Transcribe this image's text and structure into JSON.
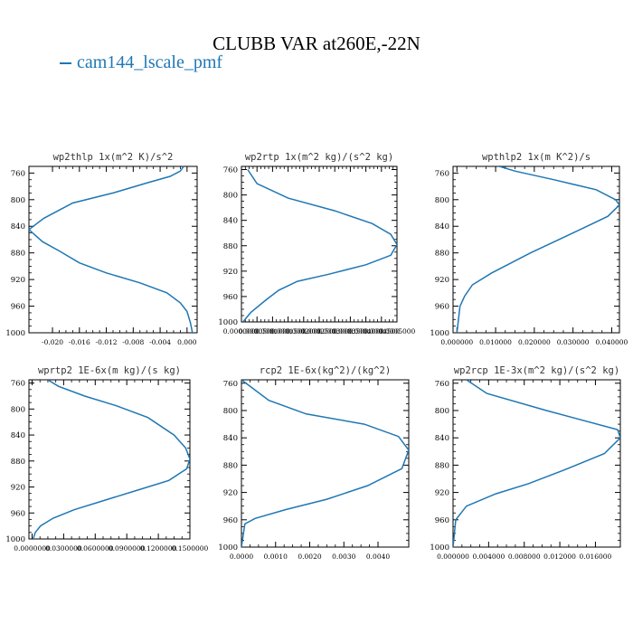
{
  "figure": {
    "title": "CLUBB VAR at260E,-22N",
    "legend_label": "cam144_lscale_pmf",
    "line_color": "#1f77b4"
  },
  "chart_data": [
    {
      "type": "line",
      "title": "wp2thlp  1x(m^2 K)/s^2",
      "xlim": [
        -0.0235,
        0.0015
      ],
      "ylim": [
        1000,
        750
      ],
      "xticks": [
        -0.02,
        -0.016,
        -0.012,
        -0.008,
        -0.004,
        0.0
      ],
      "xtick_labels": [
        "-0.020",
        "-0.016",
        "-0.012",
        "-0.008",
        "-0.004",
        "0.000"
      ],
      "yticks": [
        760,
        800,
        840,
        880,
        920,
        960,
        1000
      ],
      "ytick_labels": [
        "760",
        "800",
        "840",
        "880",
        "920",
        "960",
        "1000"
      ],
      "series": [
        {
          "x": [
            -0.0005,
            -0.001,
            -0.0025,
            -0.006,
            -0.011,
            -0.017,
            -0.0213,
            -0.0235,
            -0.0215,
            -0.019,
            -0.016,
            -0.012,
            -0.007,
            -0.003,
            -0.001,
            0.0,
            0.0005,
            0.0008
          ],
          "y": [
            750,
            757,
            765,
            775,
            790,
            805,
            828,
            845,
            863,
            877,
            895,
            910,
            925,
            940,
            955,
            968,
            985,
            1000
          ]
        }
      ]
    },
    {
      "type": "line",
      "title": "wp2rtp  1x(m^2 kg)/(s^2 kg)",
      "xlim": [
        0.0,
        0.0005
      ],
      "ylim": [
        1000,
        755
      ],
      "xticks": [
        0.0,
        5e-05,
        0.0001,
        0.00015,
        0.0002,
        0.00025,
        0.0003,
        0.00035,
        0.0004,
        0.00045,
        0.0005
      ],
      "xtick_labels": [
        "0.0000000",
        "0.0000500",
        "0.0001000",
        "0.0001500",
        "0.0002000",
        "0.0002500",
        "0.0003000",
        "0.0003500",
        "0.0004000",
        "0.0004500",
        "0.0005000"
      ],
      "yticks": [
        760,
        800,
        840,
        880,
        920,
        960,
        1000
      ],
      "ytick_labels": [
        "760",
        "800",
        "840",
        "880",
        "920",
        "960",
        "1000"
      ],
      "series": [
        {
          "x": [
            2e-05,
            5e-05,
            0.00015,
            0.0003,
            0.00042,
            0.00048,
            0.0005,
            0.00048,
            0.0004,
            0.00028,
            0.00018,
            0.00012,
            8e-05,
            3e-05,
            5e-06
          ],
          "y": [
            760,
            782,
            805,
            825,
            845,
            862,
            878,
            895,
            910,
            925,
            936,
            950,
            965,
            985,
            1000
          ]
        }
      ]
    },
    {
      "type": "line",
      "title": "wpthlp2  1x(m K^2)/s",
      "xlim": [
        -0.001,
        0.042
      ],
      "ylim": [
        1000,
        750
      ],
      "xticks": [
        0.0,
        0.01,
        0.02,
        0.03,
        0.04
      ],
      "xtick_labels": [
        "0.000000",
        "0.010000",
        "0.020000",
        "0.030000",
        "0.040000"
      ],
      "yticks": [
        760,
        800,
        840,
        880,
        920,
        960,
        1000
      ],
      "ytick_labels": [
        "760",
        "800",
        "840",
        "880",
        "920",
        "960",
        "1000"
      ],
      "series": [
        {
          "x": [
            0.011,
            0.015,
            0.025,
            0.036,
            0.041,
            0.042,
            0.039,
            0.03,
            0.019,
            0.009,
            0.004,
            0.002,
            0.0008,
            0.0
          ],
          "y": [
            750,
            757,
            770,
            785,
            800,
            808,
            825,
            850,
            880,
            910,
            928,
            945,
            960,
            1000
          ]
        }
      ]
    },
    {
      "type": "line",
      "title": "wprtp2  1E-6x(m kg)/(s kg)",
      "xlim": [
        -0.003,
        0.15
      ],
      "ylim": [
        1000,
        755
      ],
      "xticks": [
        0.0,
        0.03,
        0.06,
        0.09,
        0.12,
        0.15
      ],
      "xtick_labels": [
        "0.0000000",
        "0.0300000",
        "0.0600000",
        "0.0900000",
        "0.1200000",
        "0.1500000"
      ],
      "yticks": [
        760,
        800,
        840,
        880,
        920,
        960,
        1000
      ],
      "ytick_labels": [
        "760",
        "800",
        "840",
        "880",
        "920",
        "960",
        "1000"
      ],
      "series": [
        {
          "x": [
            0.015,
            0.025,
            0.05,
            0.08,
            0.11,
            0.135,
            0.146,
            0.15,
            0.147,
            0.13,
            0.1,
            0.07,
            0.04,
            0.02,
            0.008,
            0.003,
            0.001
          ],
          "y": [
            755,
            765,
            780,
            795,
            813,
            840,
            860,
            877,
            892,
            910,
            925,
            940,
            955,
            968,
            980,
            990,
            1000
          ]
        }
      ]
    },
    {
      "type": "line",
      "title": "rcp2  1E-6x(kg^2)/(kg^2)",
      "xlim": [
        0.0,
        0.0049
      ],
      "ylim": [
        1000,
        755
      ],
      "xticks": [
        0.0,
        0.001,
        0.002,
        0.003,
        0.004
      ],
      "xtick_labels": [
        "0.0000",
        "0.0010",
        "0.0020",
        "0.0030",
        "0.0040"
      ],
      "yticks": [
        760,
        800,
        840,
        880,
        920,
        960,
        1000
      ],
      "ytick_labels": [
        "760",
        "800",
        "840",
        "880",
        "920",
        "960",
        "1000"
      ],
      "series": [
        {
          "x": [
            0.0,
            0.0008,
            0.0019,
            0.0036,
            0.0046,
            0.0049,
            0.0047,
            0.0037,
            0.0025,
            0.0013,
            0.0004,
            0.0001,
            0.0
          ],
          "y": [
            755,
            785,
            805,
            820,
            838,
            858,
            885,
            910,
            930,
            945,
            958,
            966,
            1000
          ]
        }
      ]
    },
    {
      "type": "line",
      "title": "wp2rcp  1E-3x(m^2 kg)/(s^2 kg)",
      "xlim": [
        0.0,
        0.0188
      ],
      "ylim": [
        1000,
        755
      ],
      "xticks": [
        0.0,
        0.004,
        0.008,
        0.012,
        0.016
      ],
      "xtick_labels": [
        "0.000000",
        "0.004000",
        "0.008000",
        "0.012000",
        "0.016000"
      ],
      "yticks": [
        760,
        800,
        840,
        880,
        920,
        960,
        1000
      ],
      "ytick_labels": [
        "760",
        "800",
        "840",
        "880",
        "920",
        "960",
        "1000"
      ],
      "series": [
        {
          "x": [
            0.0015,
            0.0038,
            0.0105,
            0.0185,
            0.0188,
            0.017,
            0.0125,
            0.0085,
            0.0048,
            0.0015,
            0.0003,
            0.0
          ],
          "y": [
            755,
            775,
            800,
            828,
            840,
            863,
            887,
            907,
            922,
            940,
            960,
            1000
          ]
        }
      ]
    }
  ]
}
